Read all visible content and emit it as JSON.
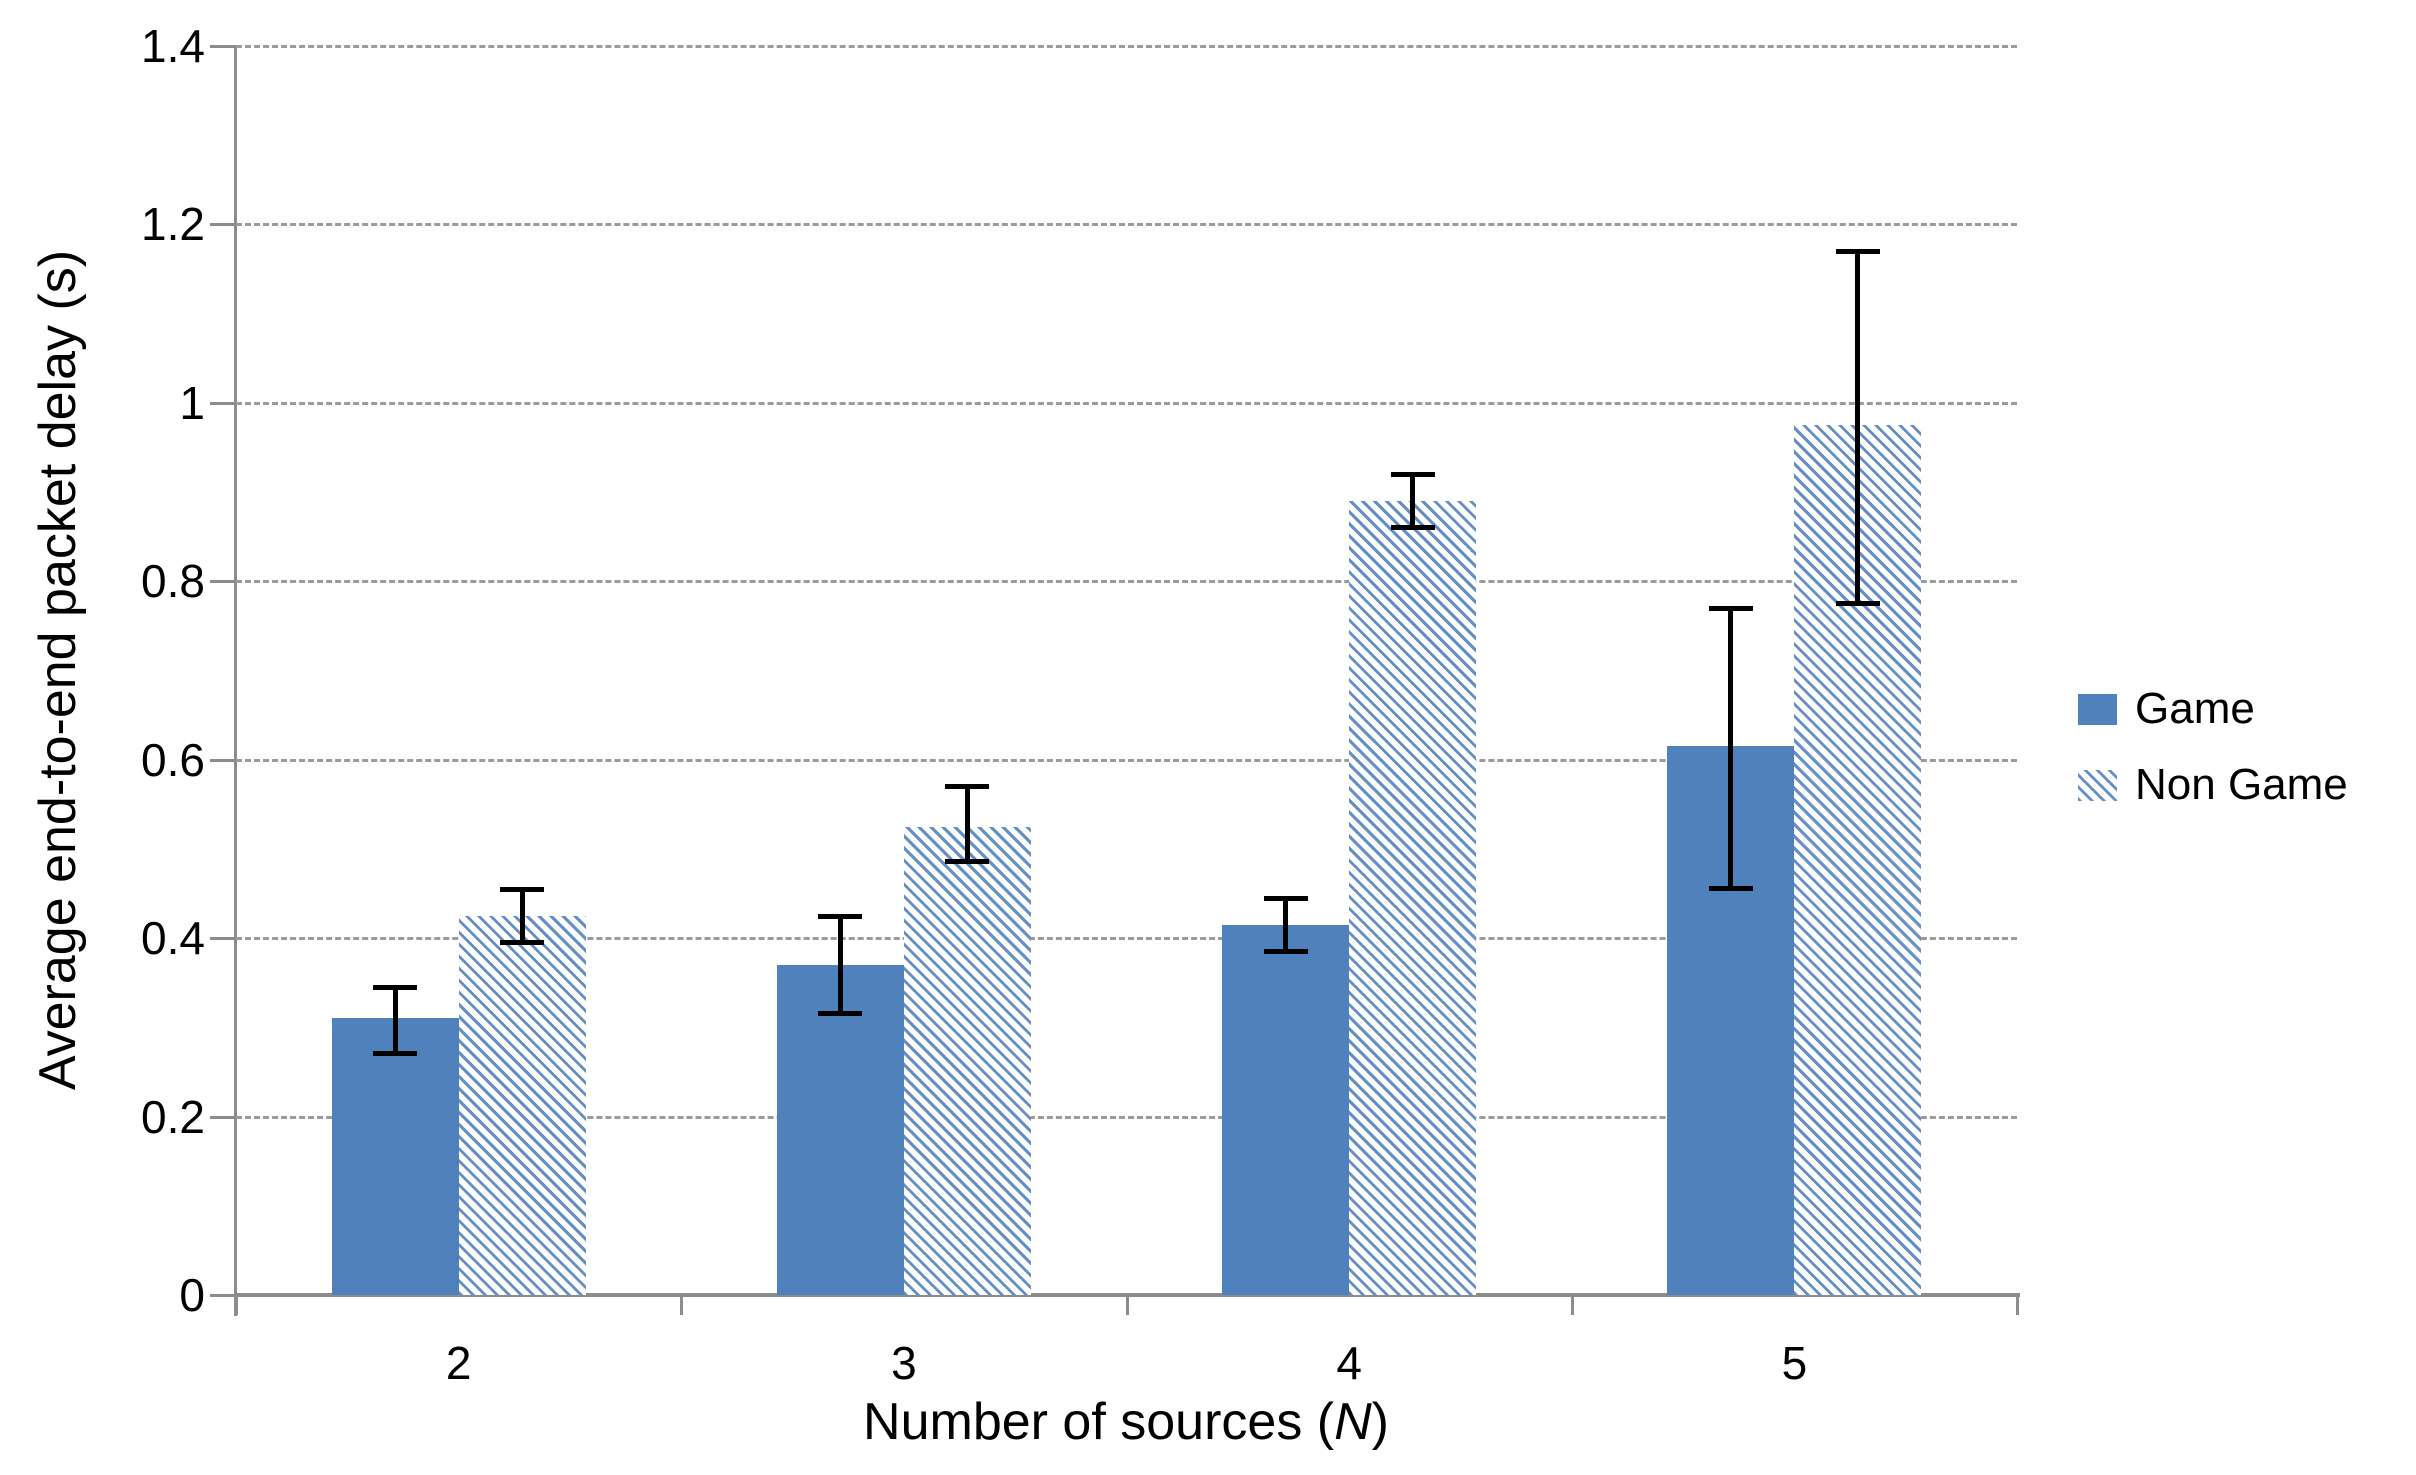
{
  "chart_data": {
    "type": "bar",
    "title": "",
    "categories": [
      "2",
      "3",
      "4",
      "5"
    ],
    "xlabel_prefix": "Number of sources (",
    "xlabel_var": "N",
    "xlabel_suffix": ")",
    "ylabel": "Average end-to-end packet delay (s)",
    "ylim": [
      0,
      1.4
    ],
    "ytick_step": 0.2,
    "ytick_values": [
      0,
      0.2,
      0.4,
      0.6,
      0.8,
      1.0,
      1.2,
      1.4
    ],
    "ytick_labels": [
      "0",
      "0.2",
      "0.4",
      "0.6",
      "0.8",
      "1",
      "1.2",
      "1.4"
    ],
    "grid": "horizontal-dashed",
    "legend_position": "right",
    "error_bars": true,
    "series": [
      {
        "name": "Game",
        "style": "solid",
        "color": "#4F81BD",
        "values": [
          0.31,
          0.37,
          0.415,
          0.615
        ],
        "error_low": [
          0.27,
          0.315,
          0.385,
          0.455
        ],
        "error_high": [
          0.345,
          0.425,
          0.445,
          0.77
        ]
      },
      {
        "name": "Non Game",
        "style": "hatched",
        "color": "#4F81BD",
        "hatch_line_color": "#6690C4",
        "values": [
          0.425,
          0.525,
          0.89,
          0.975
        ],
        "error_low": [
          0.395,
          0.485,
          0.86,
          0.775
        ],
        "error_high": [
          0.455,
          0.57,
          0.92,
          1.17
        ]
      }
    ]
  },
  "legend": {
    "items": [
      {
        "label": "Game"
      },
      {
        "label": "Non Game"
      }
    ]
  },
  "colors": {
    "bar_blue": "#4F81BD",
    "hatch_blue": "#6690C4",
    "axis_gray": "#8C8C8C",
    "grid_gray": "#9B9B9B",
    "text": "#000000"
  }
}
